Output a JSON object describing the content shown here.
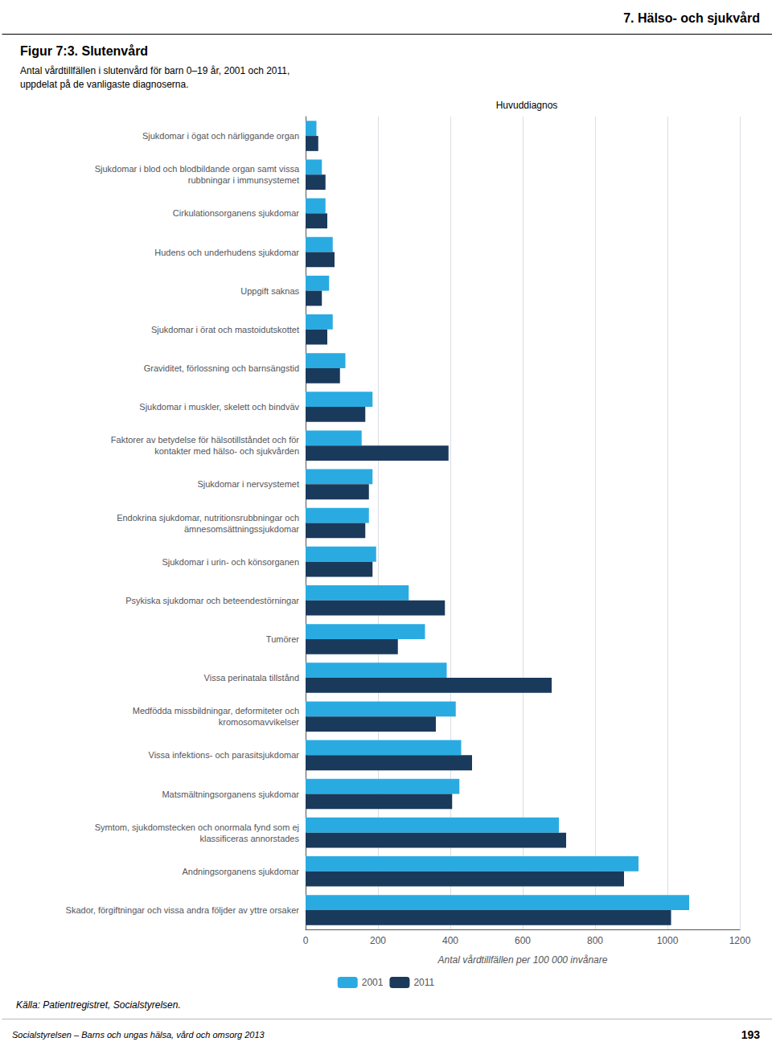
{
  "chart_data": {
    "type": "bar",
    "orientation": "horizontal",
    "title": "Figur 7:3. Slutenvård",
    "subtitle": "Antal vårdtillfällen i slutenvård för barn 0–19 år, 2001 och 2011,\nuppdelat på de vanligaste diagnoserna.",
    "xlabel": "Antal vårdtillfällen per 100 000 invånare",
    "ylabel": "Huvuddiagnos",
    "annotations": [
      "7. Hälso- och sjukvård",
      "Socialstyrelsen – Barns och ungas hälsa, vård och omsorg 2013",
      "193",
      "Källa: Patientregistret, Socialstyrelsen."
    ],
    "categories": [
      "Sjukdomar i ögat och närliggande organ",
      "Sjukdomar i blod och blodbildande organ samt vissa\nrubbningar i immunsystemet",
      "Cirkulationsorganens sjukdomar",
      "Hudens och underhudens sjukdomar",
      "Uppgift saknas",
      "Sjukdomar i örat och mastoidutskottet",
      "Graviditet, förlossning och barnsängstid",
      "Sjukdomar i muskler, skelett och bindväv",
      "Faktorer av betydelse för hälsotillståndet och för\nkontakter med hälso- och sjukvården",
      "Sjukdomar i nervsystemet",
      "Endokrina sjukdomar, nutritionsrubbningar och\nämnesomsättningssjukdomar",
      "Sjukdomar i urin- och könsorganen",
      "Psykiska sjukdomar och beteendestörningar",
      "Tumörer",
      "Vissa perinatala tillstånd",
      "Medfödda missbildningar, deformiteter och\nkromosomavvikelser",
      "Vissa infektions- och parasitsjukdomar",
      "Matsmältningsorganens sjukdomar",
      "Symtom, sjukdomstecken och onormala fynd som ej\nklassificeras annorstades",
      "Andningsorganens sjukdomar",
      "Skador, förgiftningar och vissa andra följder av yttre orsaker"
    ],
    "series": [
      {
        "name": "2001",
        "color": "#29abe2",
        "values": [
          30,
          45,
          55,
          75,
          65,
          75,
          110,
          185,
          155,
          185,
          175,
          195,
          285,
          330,
          390,
          415,
          430,
          425,
          700,
          920,
          1060
        ]
      },
      {
        "name": "2011",
        "color": "#1a3a5c",
        "values": [
          35,
          55,
          60,
          80,
          45,
          60,
          95,
          165,
          395,
          175,
          165,
          185,
          385,
          255,
          680,
          360,
          460,
          405,
          720,
          880,
          1010
        ]
      }
    ],
    "xlim": [
      0,
      1200
    ],
    "xticks": [
      0,
      200,
      400,
      600,
      800,
      1000,
      1200
    ],
    "grid": true,
    "legend": "bottom"
  }
}
